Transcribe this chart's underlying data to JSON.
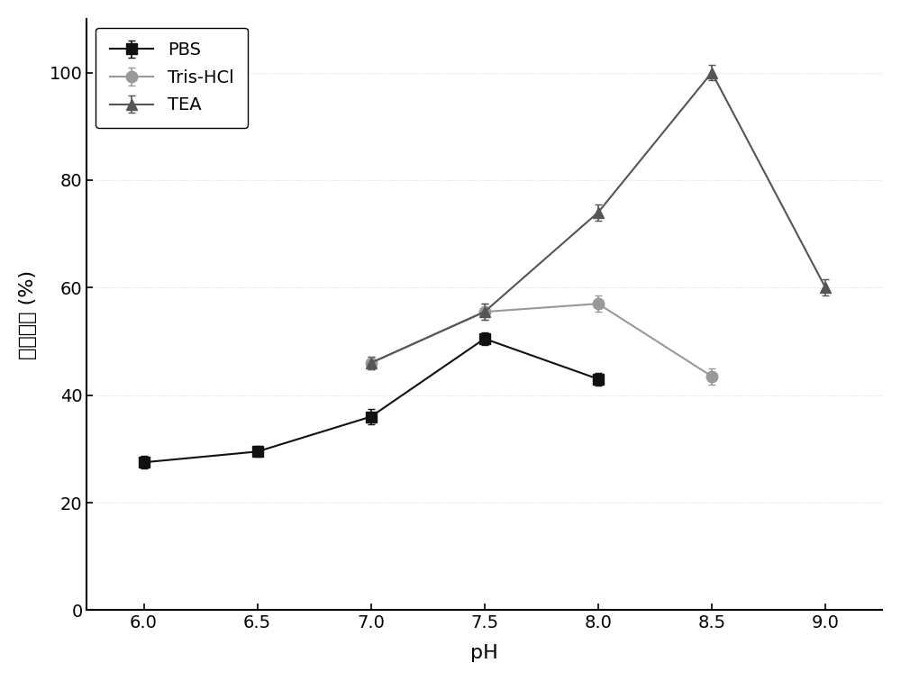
{
  "title": "",
  "xlabel": "pH",
  "ylabel": "相对酶活 (%)",
  "xlim": [
    5.75,
    9.25
  ],
  "ylim": [
    0,
    110
  ],
  "xticks": [
    6.0,
    6.5,
    7.0,
    7.5,
    8.0,
    8.5,
    9.0
  ],
  "yticks": [
    0,
    20,
    40,
    60,
    80,
    100
  ],
  "series": [
    {
      "label": "PBS",
      "x": [
        6.0,
        6.5,
        7.0,
        7.5,
        8.0
      ],
      "y": [
        27.5,
        29.5,
        36.0,
        50.5,
        43.0
      ],
      "yerr": [
        1.2,
        1.0,
        1.5,
        1.2,
        1.2
      ],
      "color": "#111111",
      "marker": "s",
      "markersize": 8,
      "linewidth": 1.5
    },
    {
      "label": "Tris-HCl",
      "x": [
        7.0,
        7.5,
        8.0,
        8.5
      ],
      "y": [
        46.0,
        55.5,
        57.0,
        43.5
      ],
      "yerr": [
        1.2,
        1.5,
        1.5,
        1.5
      ],
      "color": "#999999",
      "marker": "o",
      "markersize": 9,
      "linewidth": 1.5
    },
    {
      "label": "TEA",
      "x": [
        7.0,
        7.5,
        8.0,
        8.5,
        9.0
      ],
      "y": [
        46.0,
        55.5,
        74.0,
        100.0,
        60.0
      ],
      "yerr": [
        1.2,
        1.5,
        1.5,
        1.5,
        1.5
      ],
      "color": "#555555",
      "marker": "^",
      "markersize": 9,
      "linewidth": 1.5
    }
  ],
  "legend_loc": "upper left",
  "legend_fontsize": 14,
  "tick_fontsize": 14,
  "label_fontsize": 15,
  "background_color": "#ffffff",
  "grid_color": "#d0d0d0",
  "grid_linewidth": 0.6
}
